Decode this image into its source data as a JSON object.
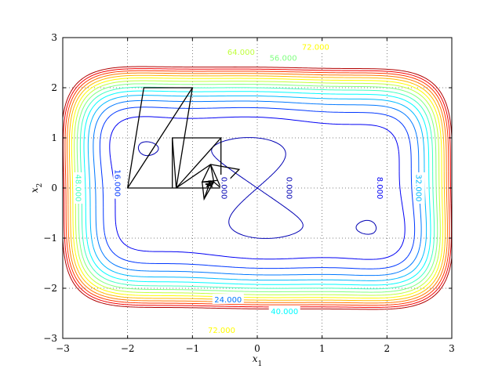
{
  "chart_data": {
    "type": "contour",
    "xlabel": "x1",
    "ylabel": "x2",
    "xlim": [
      -3,
      3
    ],
    "ylim": [
      -3,
      3
    ],
    "x_ticks": [
      -3,
      -2,
      -1,
      0,
      1,
      2,
      3
    ],
    "y_ticks": [
      -3,
      -2,
      -1,
      0,
      1,
      2,
      3
    ],
    "x_tick_labels": [
      "−3",
      "−2",
      "−1",
      "0",
      "1",
      "2",
      "3"
    ],
    "y_tick_labels": [
      "−3",
      "−2",
      "−1",
      "0",
      "1",
      "2",
      "3"
    ],
    "grid": true,
    "contour_levels": [
      0,
      8,
      16,
      24,
      32,
      40,
      48,
      56,
      64,
      72,
      80,
      88,
      96,
      104,
      112
    ],
    "contour_labels": [
      {
        "text": "64.000",
        "x": -0.25,
        "y": 2.72,
        "level": 64
      },
      {
        "text": "56.000",
        "x": 0.4,
        "y": 2.6,
        "level": 56
      },
      {
        "text": "72.000",
        "x": 0.9,
        "y": 2.82,
        "level": 72
      },
      {
        "text": "48.000",
        "x": -2.75,
        "y": 0,
        "level": 48
      },
      {
        "text": "16.000",
        "x": -2.15,
        "y": 0.1,
        "level": 16
      },
      {
        "text": "0.000",
        "x": -0.5,
        "y": 0.0,
        "level": 0
      },
      {
        "text": "0.000",
        "x": 0.5,
        "y": 0.0,
        "level": 0
      },
      {
        "text": "8.000",
        "x": 1.9,
        "y": 0,
        "level": 8
      },
      {
        "text": "32.000",
        "x": 2.5,
        "y": 0,
        "level": 32
      },
      {
        "text": "24.000",
        "x": -0.45,
        "y": -2.22,
        "level": 24
      },
      {
        "text": "40.000",
        "x": 0.42,
        "y": -2.45,
        "level": 40
      },
      {
        "text": "72.000",
        "x": -0.55,
        "y": -2.83,
        "level": 72
      }
    ],
    "path_segments": [
      [
        [
          -2.0,
          0.0
        ],
        [
          -1.75,
          2.0
        ],
        [
          -1.0,
          2.0
        ],
        [
          -2.0,
          0.0
        ]
      ],
      [
        [
          -1.0,
          2.0
        ],
        [
          -1.25,
          0.0
        ],
        [
          -2.0,
          0.0
        ]
      ],
      [
        [
          -1.25,
          0.0
        ],
        [
          -1.31,
          1.0
        ],
        [
          -0.56,
          1.0
        ],
        [
          -1.25,
          0.0
        ]
      ],
      [
        [
          -1.31,
          1.0
        ],
        [
          -1.31,
          0.0
        ]
      ],
      [
        [
          -1.25,
          0.0
        ],
        [
          -0.56,
          0.0
        ],
        [
          -0.56,
          1.0
        ]
      ],
      [
        [
          -1.25,
          0.0
        ],
        [
          -0.72,
          0.47
        ],
        [
          -0.28,
          0.37
        ],
        [
          -0.56,
          0.0
        ],
        [
          -0.72,
          0.47
        ]
      ],
      [
        [
          -0.72,
          0.47
        ],
        [
          -0.67,
          0.12
        ],
        [
          -0.56,
          0.0
        ]
      ],
      [
        [
          -0.72,
          0.47
        ],
        [
          -0.85,
          0.12
        ],
        [
          -0.67,
          0.12
        ]
      ],
      [
        [
          -0.85,
          0.12
        ],
        [
          -0.82,
          -0.22
        ],
        [
          -0.67,
          0.12
        ]
      ],
      [
        [
          -0.82,
          -0.22
        ],
        [
          -0.72,
          0.15
        ],
        [
          -0.78,
          0.02
        ],
        [
          -0.68,
          0.1
        ],
        [
          -0.8,
          0.08
        ],
        [
          -0.7,
          0.03
        ],
        [
          -0.75,
          0.15
        ]
      ],
      [
        [
          -0.85,
          0.12
        ],
        [
          -0.62,
          0.15
        ]
      ]
    ]
  }
}
